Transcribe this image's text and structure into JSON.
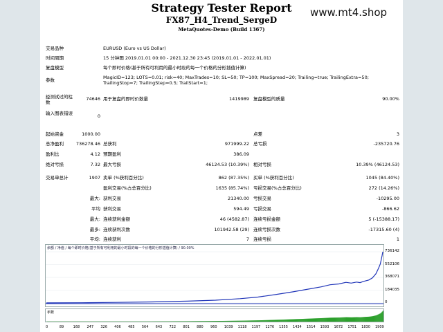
{
  "header": {
    "title": "Strategy Tester Report",
    "subtitle": "FX87_H4_Trend_SergeD",
    "build": "MetaQuotes-Demo (Build 1367)",
    "watermark": "www.mt4.shop"
  },
  "info": {
    "symbol_label": "交易品种",
    "symbol_value": "EURUSD (Euro vs US Dollar)",
    "period_label": "时间周期",
    "period_value": "15 分钟图 2019.01.01 00:00 - 2021.12.30 23:45 (2019.01.01 - 2022.01.01)",
    "model_label": "复盘模型",
    "model_value": "每个即时价格(基于所有可利用的最小时段的每一个价格的分形插值计算)",
    "params_label": "参数",
    "params_line1": "MagicID=123; LOTS=0.01; risk=40; MaxTrades=10; SL=50; TP=100; MaxSpread=20; Trailing=true; TrailingExtra=50;",
    "params_line2": "TrailingStop=7; TrailingStep=0.5; TrailStart=1;",
    "bars_label": "经测试过的柱数",
    "bars_value": "74646",
    "ticks_label": "用于复盘的即时价数量",
    "ticks_value": "1419989",
    "quality_label": "复盘模型的质量",
    "quality_value": "90.00%",
    "errors_label": "输入图表错误",
    "errors_value": "0"
  },
  "stats": {
    "deposit_label": "起始资金",
    "deposit_value": "1000.00",
    "spread_label": "点差",
    "spread_value": "3",
    "net_label": "总净盈利",
    "net_value": "736278.46",
    "gross_profit_label": "总获利",
    "gross_profit_value": "971999.22",
    "gross_loss_label": "总亏损",
    "gross_loss_value": "-235720.76",
    "pf_label": "盈利比",
    "pf_value": "4.12",
    "payoff_label": "预期盈利",
    "payoff_value": "386.09",
    "abs_dd_label": "绝对亏损",
    "abs_dd_value": "7.32",
    "max_dd_label": "最大亏损",
    "max_dd_value": "46124.53 (10.39%)",
    "rel_dd_label": "相对亏损",
    "rel_dd_value": "10.39% (46124.53)",
    "trades_label": "交易单总计",
    "trades_value": "1907",
    "short_label": "卖单 (%获利百分比)",
    "short_value": "862 (87.35%)",
    "long_label": "买单 (%获利百分比)",
    "long_value": "1045 (84.40%)",
    "profit_trades_label": "盈利交易(%占总百分比)",
    "profit_trades_value": "1635 (85.74%)",
    "loss_trades_label": "亏损交易(%占总百分比)",
    "loss_trades_value": "272 (14.26%)",
    "max_label": "最大:",
    "largest_profit_label": "获利交易",
    "largest_profit_value": "21340.00",
    "largest_loss_label": "亏损交易",
    "largest_loss_value": "-10295.00",
    "avg_label": "平均",
    "avg_profit_label": "获利交易",
    "avg_profit_value": "594.49",
    "avg_loss_label": "亏损交易",
    "avg_loss_value": "-866.62",
    "max2_label": "最大:",
    "max_consec_wins_label": "连续获利金额",
    "max_consec_wins_value": "46 (4582.87)",
    "max_consec_losses_label": "连续亏损金额",
    "max_consec_losses_value": "5 (-15388.17)",
    "most_label": "最多:",
    "max_consec_profit_label": "连续获利次数",
    "max_consec_profit_value": "101942.58 (29)",
    "max_consec_loss_label": "连续亏损次数",
    "max_consec_loss_value": "-17315.60 (4)",
    "avg2_label": "平均:",
    "avg_consec_wins_label": "连续获利",
    "avg_consec_wins_value": "7",
    "avg_consec_losses_label": "连续亏损",
    "avg_consec_losses_value": "1"
  },
  "chart_data": {
    "type": "line",
    "caption": "余额 / 净值 / 每个即时价格(基于所有可利用的最小时段的每一个价格的分形插值计算) / 90.00%",
    "yticks": [
      "736142",
      "552106",
      "368071",
      "184035",
      "0"
    ],
    "xticks": [
      "0",
      "89",
      "168",
      "247",
      "326",
      "406",
      "485",
      "564",
      "643",
      "722",
      "801",
      "880",
      "960",
      "1039",
      "1118",
      "1197",
      "1276",
      "1355",
      "1434",
      "1514",
      "1593",
      "1672",
      "1751",
      "1830",
      "1909"
    ],
    "ylim": [
      0,
      736142
    ],
    "xlim": [
      0,
      1909
    ],
    "series": [
      {
        "values": [
          [
            0,
            1000
          ],
          [
            200,
            3000
          ],
          [
            400,
            8000
          ],
          [
            600,
            15000
          ],
          [
            800,
            26000
          ],
          [
            960,
            40000
          ],
          [
            1100,
            62000
          ],
          [
            1200,
            85000
          ],
          [
            1300,
            120000
          ],
          [
            1400,
            160000
          ],
          [
            1500,
            205000
          ],
          [
            1560,
            232000
          ],
          [
            1610,
            262000
          ],
          [
            1660,
            274000
          ],
          [
            1700,
            296000
          ],
          [
            1730,
            286000
          ],
          [
            1760,
            300000
          ],
          [
            1780,
            292000
          ],
          [
            1800,
            310000
          ],
          [
            1830,
            330000
          ],
          [
            1850,
            360000
          ],
          [
            1870,
            420000
          ],
          [
            1885,
            500000
          ],
          [
            1895,
            560000
          ],
          [
            1905,
            680000
          ],
          [
            1909,
            736142
          ]
        ],
        "color": "#1f34b8"
      }
    ],
    "volume_label": "手数",
    "volume_color": "#2ca02c"
  }
}
